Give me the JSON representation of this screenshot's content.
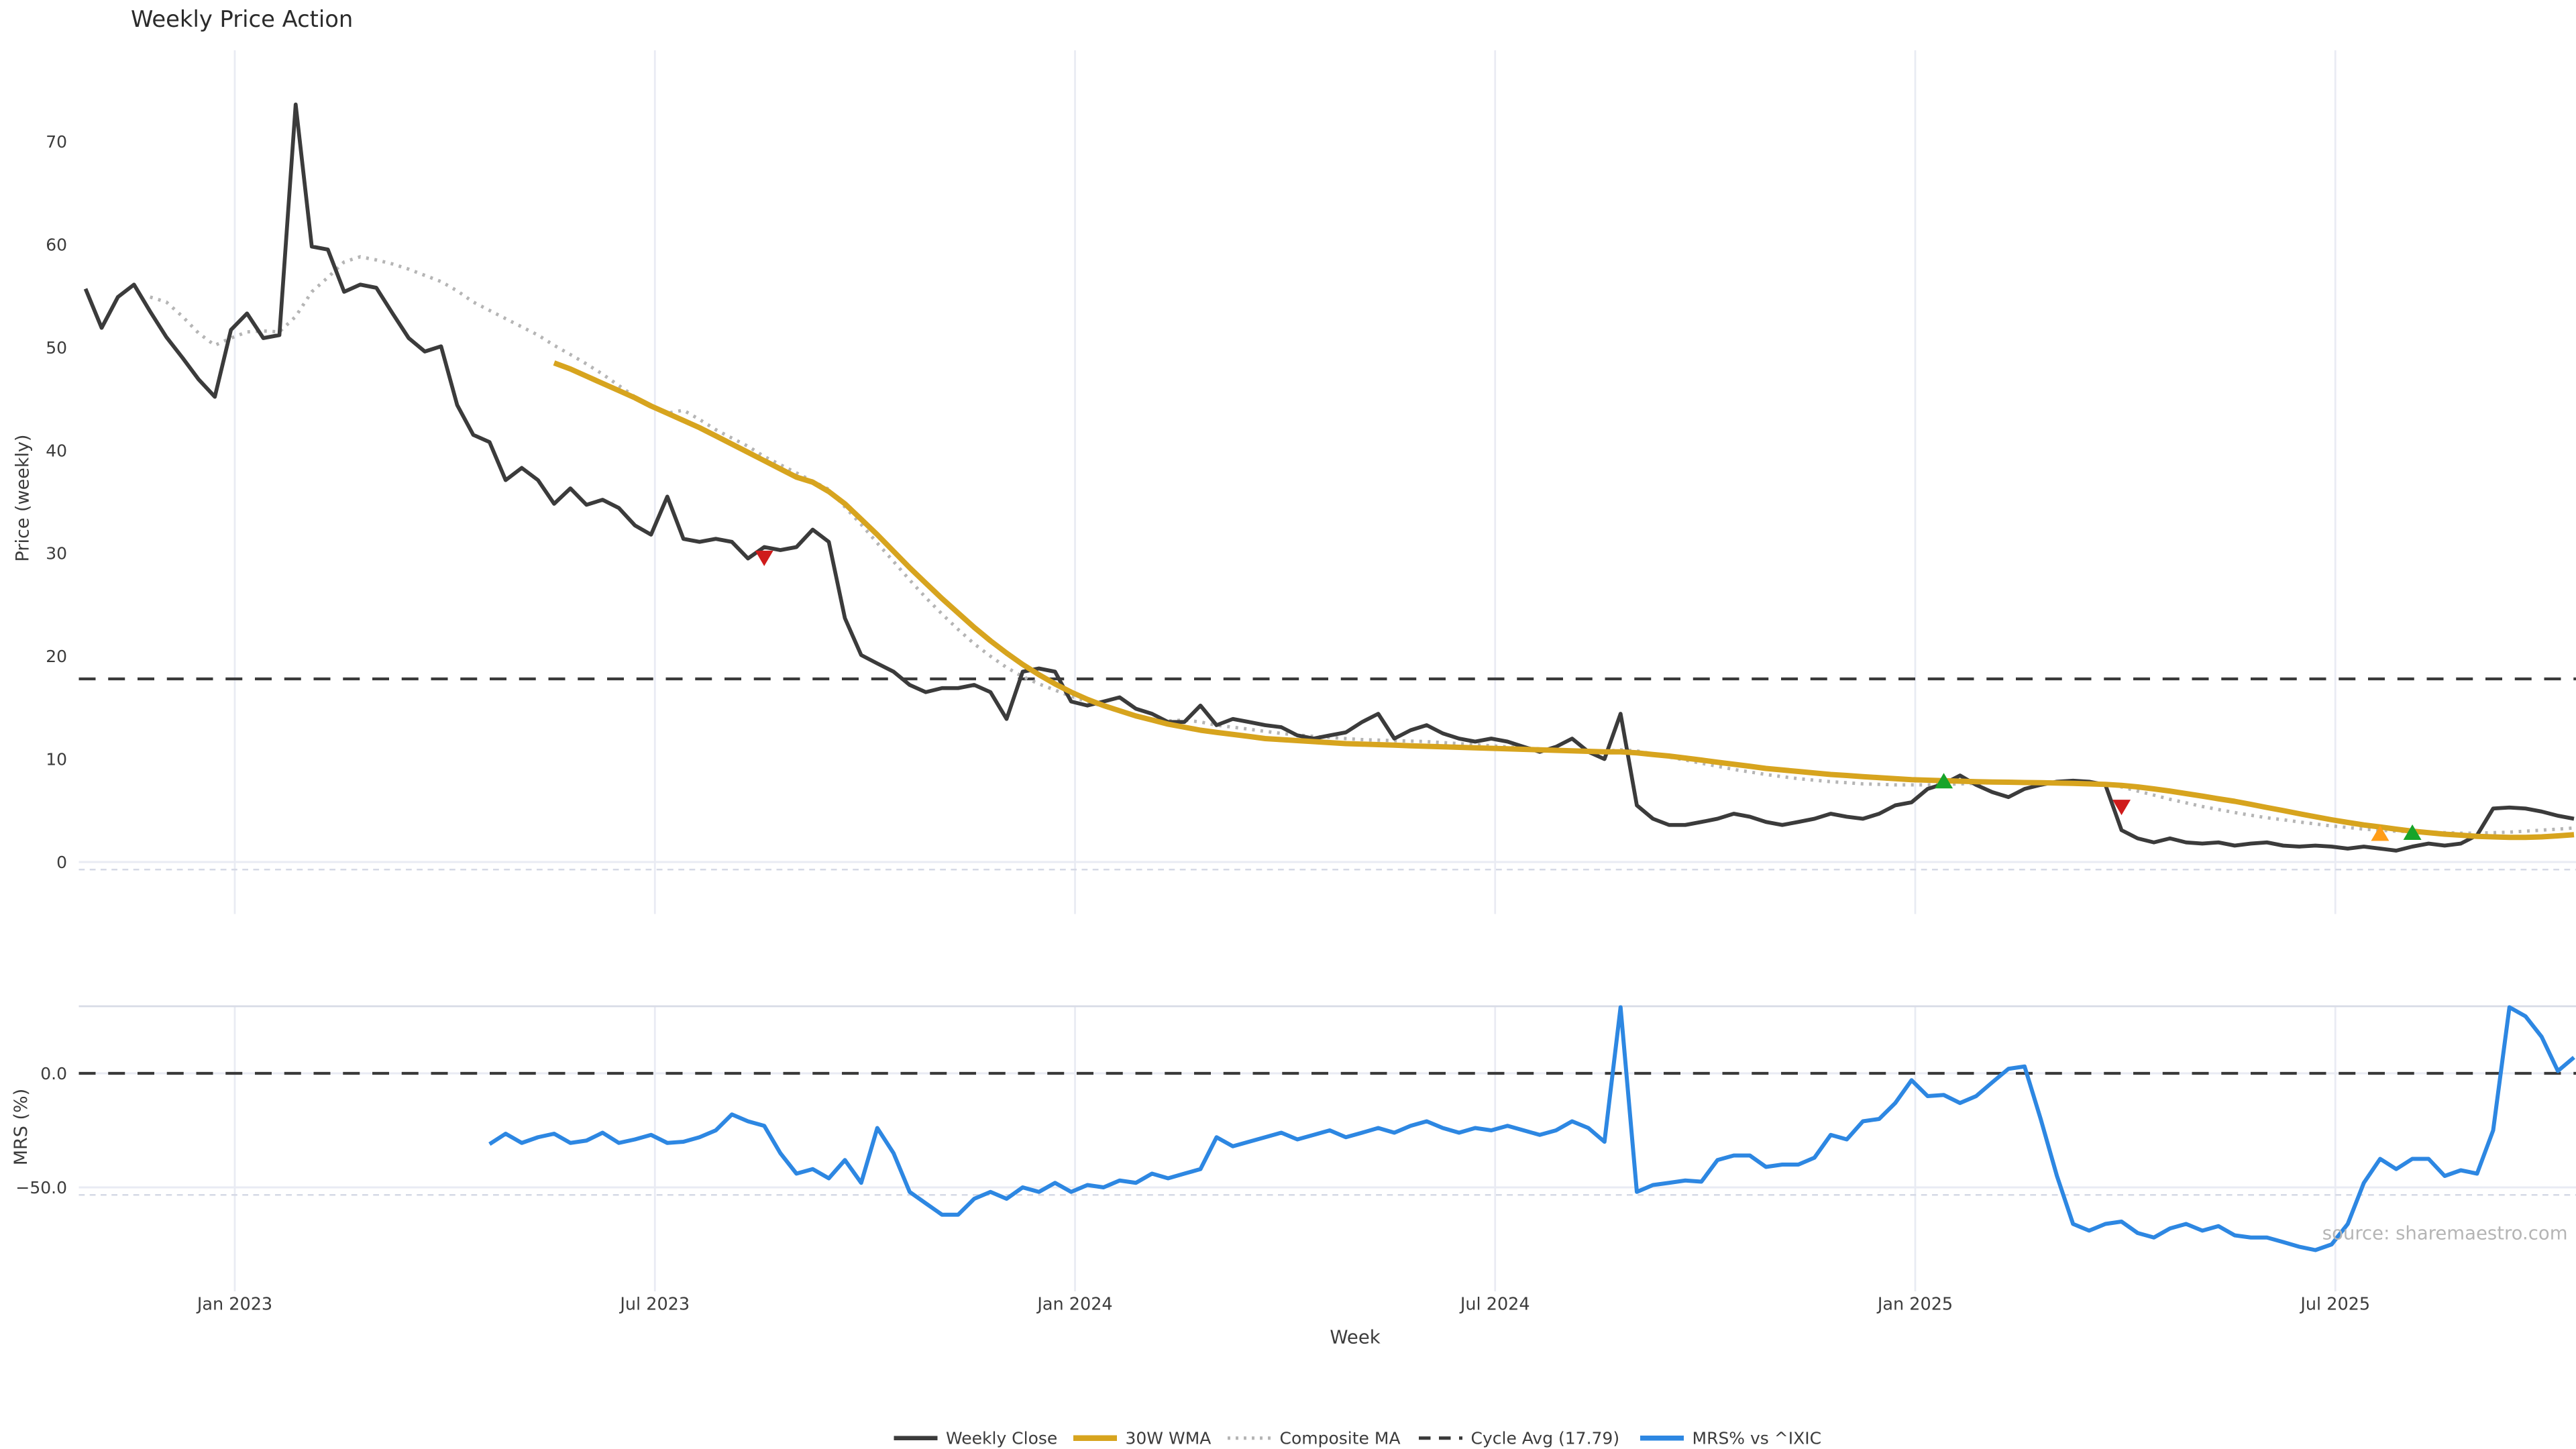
{
  "title": "Weekly Price Action",
  "source_text": "source: sharemaestro.com",
  "axes": {
    "x": {
      "label": "Week",
      "tick_labels": [
        "Jan 2023",
        "Jul 2023",
        "Jan 2024",
        "Jul 2024",
        "Jan 2025",
        "Jul 2025"
      ]
    },
    "price": {
      "label": "Price (weekly)",
      "tick_values": [
        0,
        10,
        20,
        30,
        40,
        50,
        60,
        70
      ]
    },
    "mrs": {
      "label": "MRS (%)",
      "tick_labels": [
        "0.0",
        "−50.0"
      ],
      "tick_values": [
        0,
        -50
      ]
    }
  },
  "colors": {
    "close": "#3b3b3b",
    "wma": "#d7a41e",
    "composite": "#b5b5b5",
    "cycle": "#3a3a3a",
    "mrs": "#2d87e2",
    "sell": "#cf1b1b",
    "buy": "#17a42a",
    "watch": "#ff9d18",
    "grid": "#e9ebf3",
    "spine": "#d8dbe6",
    "minor": "#d5d9e5",
    "tick_text": "#3c3c3c",
    "title_text": "#2b2b2b",
    "source_text": "#b5b5b5"
  },
  "legend": [
    {
      "label": "Weekly Close",
      "style": "solid",
      "color_key": "close",
      "width": 2.6
    },
    {
      "label": "30W WMA",
      "style": "solid",
      "color_key": "wma",
      "width": 3.4
    },
    {
      "label": "Composite MA",
      "style": "dotted",
      "color_key": "composite",
      "width": 2.0
    },
    {
      "label": "Cycle Avg (17.79)",
      "style": "dashed",
      "color_key": "cycle",
      "width": 2.0
    },
    {
      "label": "MRS% vs ^IXIC",
      "style": "solid",
      "color_key": "mrs",
      "width": 3.0
    }
  ],
  "chart_data": [
    {
      "type": "line",
      "panel": "price",
      "title": "Weekly Price Action",
      "xlabel": "Week",
      "ylabel": "Price (weekly)",
      "x_unit": "weekly",
      "x_start_label": "late Oct 2022",
      "x_end_label": "late Sep 2025",
      "x_tick_labels": [
        "Jan 2023",
        "Jul 2023",
        "Jan 2024",
        "Jul 2024",
        "Jan 2025",
        "Jul 2025"
      ],
      "ylim": [
        -5,
        78
      ],
      "grid": "vertical-only",
      "cycle_avg": 17.79,
      "series": [
        {
          "name": "Weekly Close",
          "color_key": "close",
          "style": "solid",
          "stroke_width": 2.3,
          "start_week": 0,
          "values": [
            55.7,
            51.9,
            54.9,
            56.1,
            53.5,
            51.0,
            49.0,
            46.9,
            45.2,
            51.7,
            53.3,
            50.9,
            51.2,
            73.6,
            59.8,
            59.5,
            55.4,
            56.1,
            55.8,
            53.3,
            50.9,
            49.6,
            50.1,
            44.4,
            41.5,
            40.8,
            37.1,
            38.3,
            37.1,
            34.8,
            36.3,
            34.7,
            35.2,
            34.4,
            32.7,
            31.8,
            35.5,
            31.4,
            31.1,
            31.4,
            31.1,
            29.5,
            30.6,
            30.3,
            30.6,
            32.3,
            31.1,
            23.7,
            20.1,
            19.3,
            18.5,
            17.2,
            16.5,
            16.9,
            16.9,
            17.2,
            16.5,
            13.9,
            18.5,
            18.8,
            18.5,
            15.6,
            15.2,
            15.6,
            16.0,
            14.9,
            14.4,
            13.6,
            13.6,
            15.2,
            13.3,
            13.9,
            13.6,
            13.3,
            13.1,
            12.3,
            12.0,
            12.3,
            12.6,
            13.6,
            14.4,
            12.0,
            12.8,
            13.3,
            12.5,
            12.0,
            11.7,
            12.0,
            11.7,
            11.2,
            10.7,
            11.2,
            12.0,
            10.7,
            10.0,
            14.4,
            5.5,
            4.2,
            3.6,
            3.6,
            3.9,
            4.2,
            4.7,
            4.4,
            3.9,
            3.6,
            3.9,
            4.2,
            4.7,
            4.4,
            4.2,
            4.7,
            5.5,
            5.8,
            7.1,
            7.6,
            8.4,
            7.5,
            6.8,
            6.3,
            7.1,
            7.5,
            7.8,
            7.9,
            7.8,
            7.5,
            3.1,
            2.3,
            1.9,
            2.3,
            1.9,
            1.8,
            1.9,
            1.6,
            1.8,
            1.9,
            1.6,
            1.5,
            1.6,
            1.5,
            1.3,
            1.5,
            1.3,
            1.1,
            1.5,
            1.8,
            1.6,
            1.8,
            2.6,
            5.2,
            5.3,
            5.2,
            4.9,
            4.5,
            4.2
          ]
        },
        {
          "name": "30W WMA",
          "color_key": "wma",
          "style": "solid",
          "stroke_width": 3.2,
          "start_week": 29,
          "values": [
            48.5,
            47.9,
            47.2,
            46.5,
            45.8,
            45.1,
            44.3,
            43.6,
            42.9,
            42.2,
            41.4,
            40.6,
            39.8,
            39.0,
            38.2,
            37.4,
            36.9,
            36.0,
            34.8,
            33.3,
            31.8,
            30.2,
            28.6,
            27.1,
            25.6,
            24.2,
            22.8,
            21.5,
            20.3,
            19.2,
            18.2,
            17.3,
            16.5,
            15.8,
            15.2,
            14.7,
            14.2,
            13.8,
            13.4,
            13.1,
            12.8,
            12.6,
            12.4,
            12.2,
            12.0,
            11.9,
            11.8,
            11.7,
            11.6,
            11.5,
            11.45,
            11.4,
            11.35,
            11.3,
            11.25,
            11.2,
            11.15,
            11.1,
            11.05,
            11.0,
            10.95,
            10.9,
            10.85,
            10.8,
            10.75,
            10.7,
            10.7,
            10.6,
            10.45,
            10.3,
            10.1,
            9.9,
            9.7,
            9.5,
            9.3,
            9.1,
            8.95,
            8.8,
            8.65,
            8.5,
            8.4,
            8.3,
            8.2,
            8.1,
            8.0,
            7.95,
            7.9,
            7.85,
            7.8,
            7.78,
            7.75,
            7.72,
            7.7,
            7.68,
            7.65,
            7.6,
            7.55,
            7.45,
            7.3,
            7.1,
            6.9,
            6.65,
            6.4,
            6.15,
            5.9,
            5.6,
            5.3,
            5.0,
            4.7,
            4.4,
            4.1,
            3.85,
            3.6,
            3.4,
            3.2,
            3.0,
            2.85,
            2.7,
            2.6,
            2.5,
            2.45,
            2.4,
            2.4,
            2.45,
            2.55,
            2.65
          ]
        },
        {
          "name": "Composite MA",
          "color_key": "composite",
          "style": "dotted",
          "stroke_width": 2.0,
          "start_week": 4,
          "values": [
            54.9,
            54.4,
            53.0,
            51.4,
            50.2,
            50.9,
            51.5,
            51.6,
            51.5,
            53.0,
            55.4,
            56.8,
            58.3,
            58.8,
            58.5,
            58.1,
            57.6,
            57.0,
            56.4,
            55.5,
            54.4,
            53.6,
            52.8,
            52.0,
            51.2,
            50.2,
            49.3,
            48.4,
            47.4,
            46.3,
            45.2,
            44.2,
            43.6,
            43.9,
            43.0,
            42.0,
            41.2,
            40.4,
            39.4,
            38.6,
            37.8,
            37.0,
            36.2,
            34.5,
            32.8,
            31.0,
            29.2,
            27.4,
            25.7,
            24.1,
            22.6,
            21.2,
            20.0,
            18.9,
            18.0,
            17.3,
            16.7,
            16.1,
            15.6,
            15.1,
            14.6,
            14.2,
            13.9,
            13.7,
            13.8,
            13.6,
            13.3,
            13.1,
            12.9,
            12.7,
            12.5,
            12.35,
            12.2,
            12.1,
            12.0,
            11.9,
            11.85,
            11.8,
            11.75,
            11.7,
            11.6,
            11.5,
            11.4,
            11.3,
            11.2,
            11.1,
            11.0,
            10.9,
            10.85,
            10.8,
            10.75,
            10.9,
            10.8,
            10.5,
            10.2,
            9.9,
            9.6,
            9.3,
            9.0,
            8.75,
            8.5,
            8.3,
            8.1,
            7.95,
            7.8,
            7.7,
            7.6,
            7.55,
            7.5,
            7.5,
            7.5,
            7.55,
            7.6,
            7.65,
            7.7,
            7.7,
            7.7,
            7.7,
            7.7,
            7.7,
            7.65,
            7.6,
            7.3,
            6.9,
            6.5,
            6.1,
            5.75,
            5.4,
            5.1,
            4.8,
            4.55,
            4.3,
            4.1,
            3.9,
            3.7,
            3.5,
            3.35,
            3.2,
            3.1,
            3.0,
            2.95,
            2.9,
            2.85,
            2.8,
            2.8,
            2.85,
            2.9,
            3.0,
            3.1,
            3.2,
            3.3
          ]
        }
      ],
      "markers": [
        {
          "kind": "sell",
          "shape": "triangle-down",
          "color_key": "sell",
          "week": 42,
          "value": 29.5
        },
        {
          "kind": "buy",
          "shape": "triangle-up",
          "color_key": "buy",
          "week": 115,
          "value": 7.9
        },
        {
          "kind": "sell",
          "shape": "triangle-down",
          "color_key": "sell",
          "week": 126,
          "value": 5.3
        },
        {
          "kind": "watch",
          "shape": "triangle-up",
          "color_key": "watch",
          "week": 142,
          "value": 2.8
        },
        {
          "kind": "buy",
          "shape": "triangle-up",
          "color_key": "buy",
          "week": 144,
          "value": 2.9
        }
      ]
    },
    {
      "type": "line",
      "panel": "mrs",
      "ylabel": "MRS (%)",
      "ytick_values": [
        0,
        -50
      ],
      "ytick_labels": [
        "0.0",
        "−50.0"
      ],
      "zero_line": "dashed",
      "series": [
        {
          "name": "MRS% vs ^IXIC",
          "color_key": "mrs",
          "style": "solid",
          "stroke_width": 2.4,
          "start_week": 25,
          "values": [
            -31,
            -26.5,
            -30.5,
            -28,
            -26.5,
            -30.5,
            -29.5,
            -26,
            -30.5,
            -29,
            -27,
            -30.5,
            -30,
            -28,
            -25,
            -18,
            -21,
            -23,
            -35,
            -44,
            -42,
            -46,
            -38,
            -48,
            -24,
            -35,
            -52,
            -57,
            -62,
            -62,
            -55,
            -52,
            -55,
            -50,
            -52,
            -48,
            -52,
            -49,
            -50,
            -47,
            -48,
            -44,
            -46,
            -44,
            -42,
            -28,
            -32,
            -30,
            -28,
            -26,
            -29,
            -27,
            -25,
            -28,
            -26,
            -24,
            -26,
            -23,
            -21,
            -24,
            -26,
            -24,
            -25,
            -23,
            -25,
            -27,
            -25,
            -21,
            -24,
            -30,
            29,
            -52,
            -49,
            -48,
            -47,
            -47.5,
            -38,
            -36,
            -36,
            -41,
            -40,
            -40,
            -37,
            -27,
            -29,
            -21,
            -20,
            -13,
            -3,
            -10,
            -9.5,
            -13,
            -10,
            -4,
            2,
            3,
            -20,
            -45,
            -66,
            -69,
            -66,
            -65,
            -70,
            -72,
            -68,
            -66,
            -69,
            -67,
            -71,
            -72,
            -72,
            -74,
            -76,
            -77.5,
            -75,
            -66,
            -48,
            -37.5,
            -42,
            -37.5,
            -37.5,
            -45,
            -42.5,
            -44,
            -25,
            29,
            25,
            16,
            1,
            7
          ]
        }
      ]
    }
  ]
}
